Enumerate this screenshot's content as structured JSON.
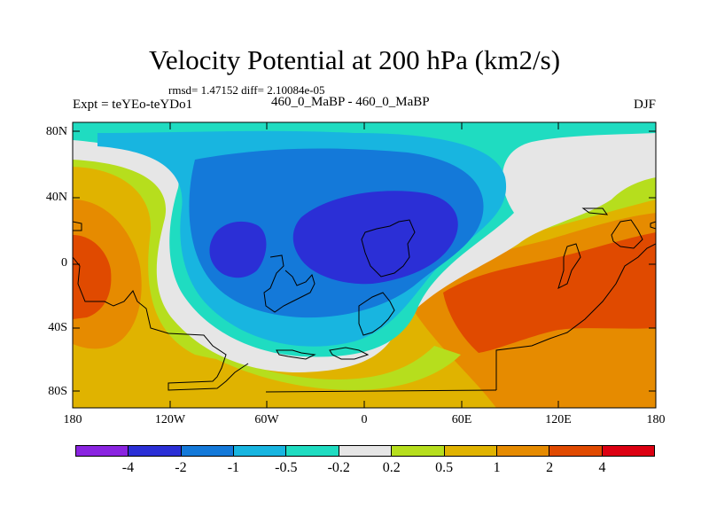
{
  "title": "Velocity Potential at 200 hPa (km2/s)",
  "stats": "rmsd= 1.47152 diff= 2.10084e-05",
  "expt": "Expt = teYEo-teYDo1",
  "case": "460_0_MaBP - 460_0_MaBP",
  "season": "DJF",
  "lat_labels": [
    "80N",
    "40N",
    "0",
    "40S",
    "80S"
  ],
  "lon_labels": [
    "180",
    "120W",
    "60W",
    "0",
    "60E",
    "120E",
    "180"
  ],
  "colorbar": {
    "colors": [
      "#8a24e0",
      "#2b2fd6",
      "#1479d9",
      "#18b5e0",
      "#1fdcc1",
      "#e6e6e6",
      "#b6de1d",
      "#e0b300",
      "#e68b00",
      "#e04a00",
      "#dc0012"
    ],
    "labels": [
      "-4",
      "-2",
      "-1",
      "-0.5",
      "-0.2",
      "0.2",
      "0.5",
      "1",
      "2",
      "4"
    ]
  },
  "icons": {
    "plot": "map-contour-icon"
  }
}
